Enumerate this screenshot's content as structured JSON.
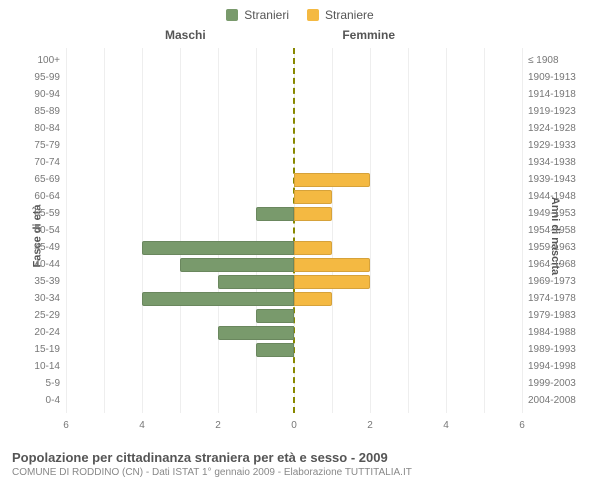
{
  "legend": {
    "male": {
      "label": "Stranieri",
      "color": "#799a6c"
    },
    "female": {
      "label": "Straniere",
      "color": "#f4b942"
    }
  },
  "chart": {
    "type": "population-pyramid",
    "panel_title_left": "Maschi",
    "panel_title_right": "Femmine",
    "yaxis_title_left": "Fasce di età",
    "yaxis_title_right": "Anni di nascita",
    "xmax": 6,
    "xticks": [
      6,
      4,
      2,
      0,
      2,
      4,
      6
    ],
    "background_color": "#ffffff",
    "grid_color": "#eeeeee",
    "centerline_color": "#888800",
    "bar_color_male": "#799a6c",
    "bar_color_female": "#f4b942",
    "label_fontsize": 10,
    "title_fontsize": 12,
    "rows": [
      {
        "age": "100+",
        "year": "≤ 1908",
        "m": 0,
        "f": 0
      },
      {
        "age": "95-99",
        "year": "1909-1913",
        "m": 0,
        "f": 0
      },
      {
        "age": "90-94",
        "year": "1914-1918",
        "m": 0,
        "f": 0
      },
      {
        "age": "85-89",
        "year": "1919-1923",
        "m": 0,
        "f": 0
      },
      {
        "age": "80-84",
        "year": "1924-1928",
        "m": 0,
        "f": 0
      },
      {
        "age": "75-79",
        "year": "1929-1933",
        "m": 0,
        "f": 0
      },
      {
        "age": "70-74",
        "year": "1934-1938",
        "m": 0,
        "f": 0
      },
      {
        "age": "65-69",
        "year": "1939-1943",
        "m": 0,
        "f": 2
      },
      {
        "age": "60-64",
        "year": "1944-1948",
        "m": 0,
        "f": 1
      },
      {
        "age": "55-59",
        "year": "1949-1953",
        "m": 1,
        "f": 1
      },
      {
        "age": "50-54",
        "year": "1954-1958",
        "m": 0,
        "f": 0
      },
      {
        "age": "45-49",
        "year": "1959-1963",
        "m": 4,
        "f": 1
      },
      {
        "age": "40-44",
        "year": "1964-1968",
        "m": 3,
        "f": 2
      },
      {
        "age": "35-39",
        "year": "1969-1973",
        "m": 2,
        "f": 2
      },
      {
        "age": "30-34",
        "year": "1974-1978",
        "m": 4,
        "f": 1
      },
      {
        "age": "25-29",
        "year": "1979-1983",
        "m": 1,
        "f": 0
      },
      {
        "age": "20-24",
        "year": "1984-1988",
        "m": 2,
        "f": 0
      },
      {
        "age": "15-19",
        "year": "1989-1993",
        "m": 1,
        "f": 0
      },
      {
        "age": "10-14",
        "year": "1994-1998",
        "m": 0,
        "f": 0
      },
      {
        "age": "5-9",
        "year": "1999-2003",
        "m": 0,
        "f": 0
      },
      {
        "age": "0-4",
        "year": "2004-2008",
        "m": 0,
        "f": 0
      }
    ]
  },
  "footer": {
    "title": "Popolazione per cittadinanza straniera per età e sesso - 2009",
    "subtitle": "COMUNE DI RODDINO (CN) - Dati ISTAT 1° gennaio 2009 - Elaborazione TUTTITALIA.IT"
  }
}
